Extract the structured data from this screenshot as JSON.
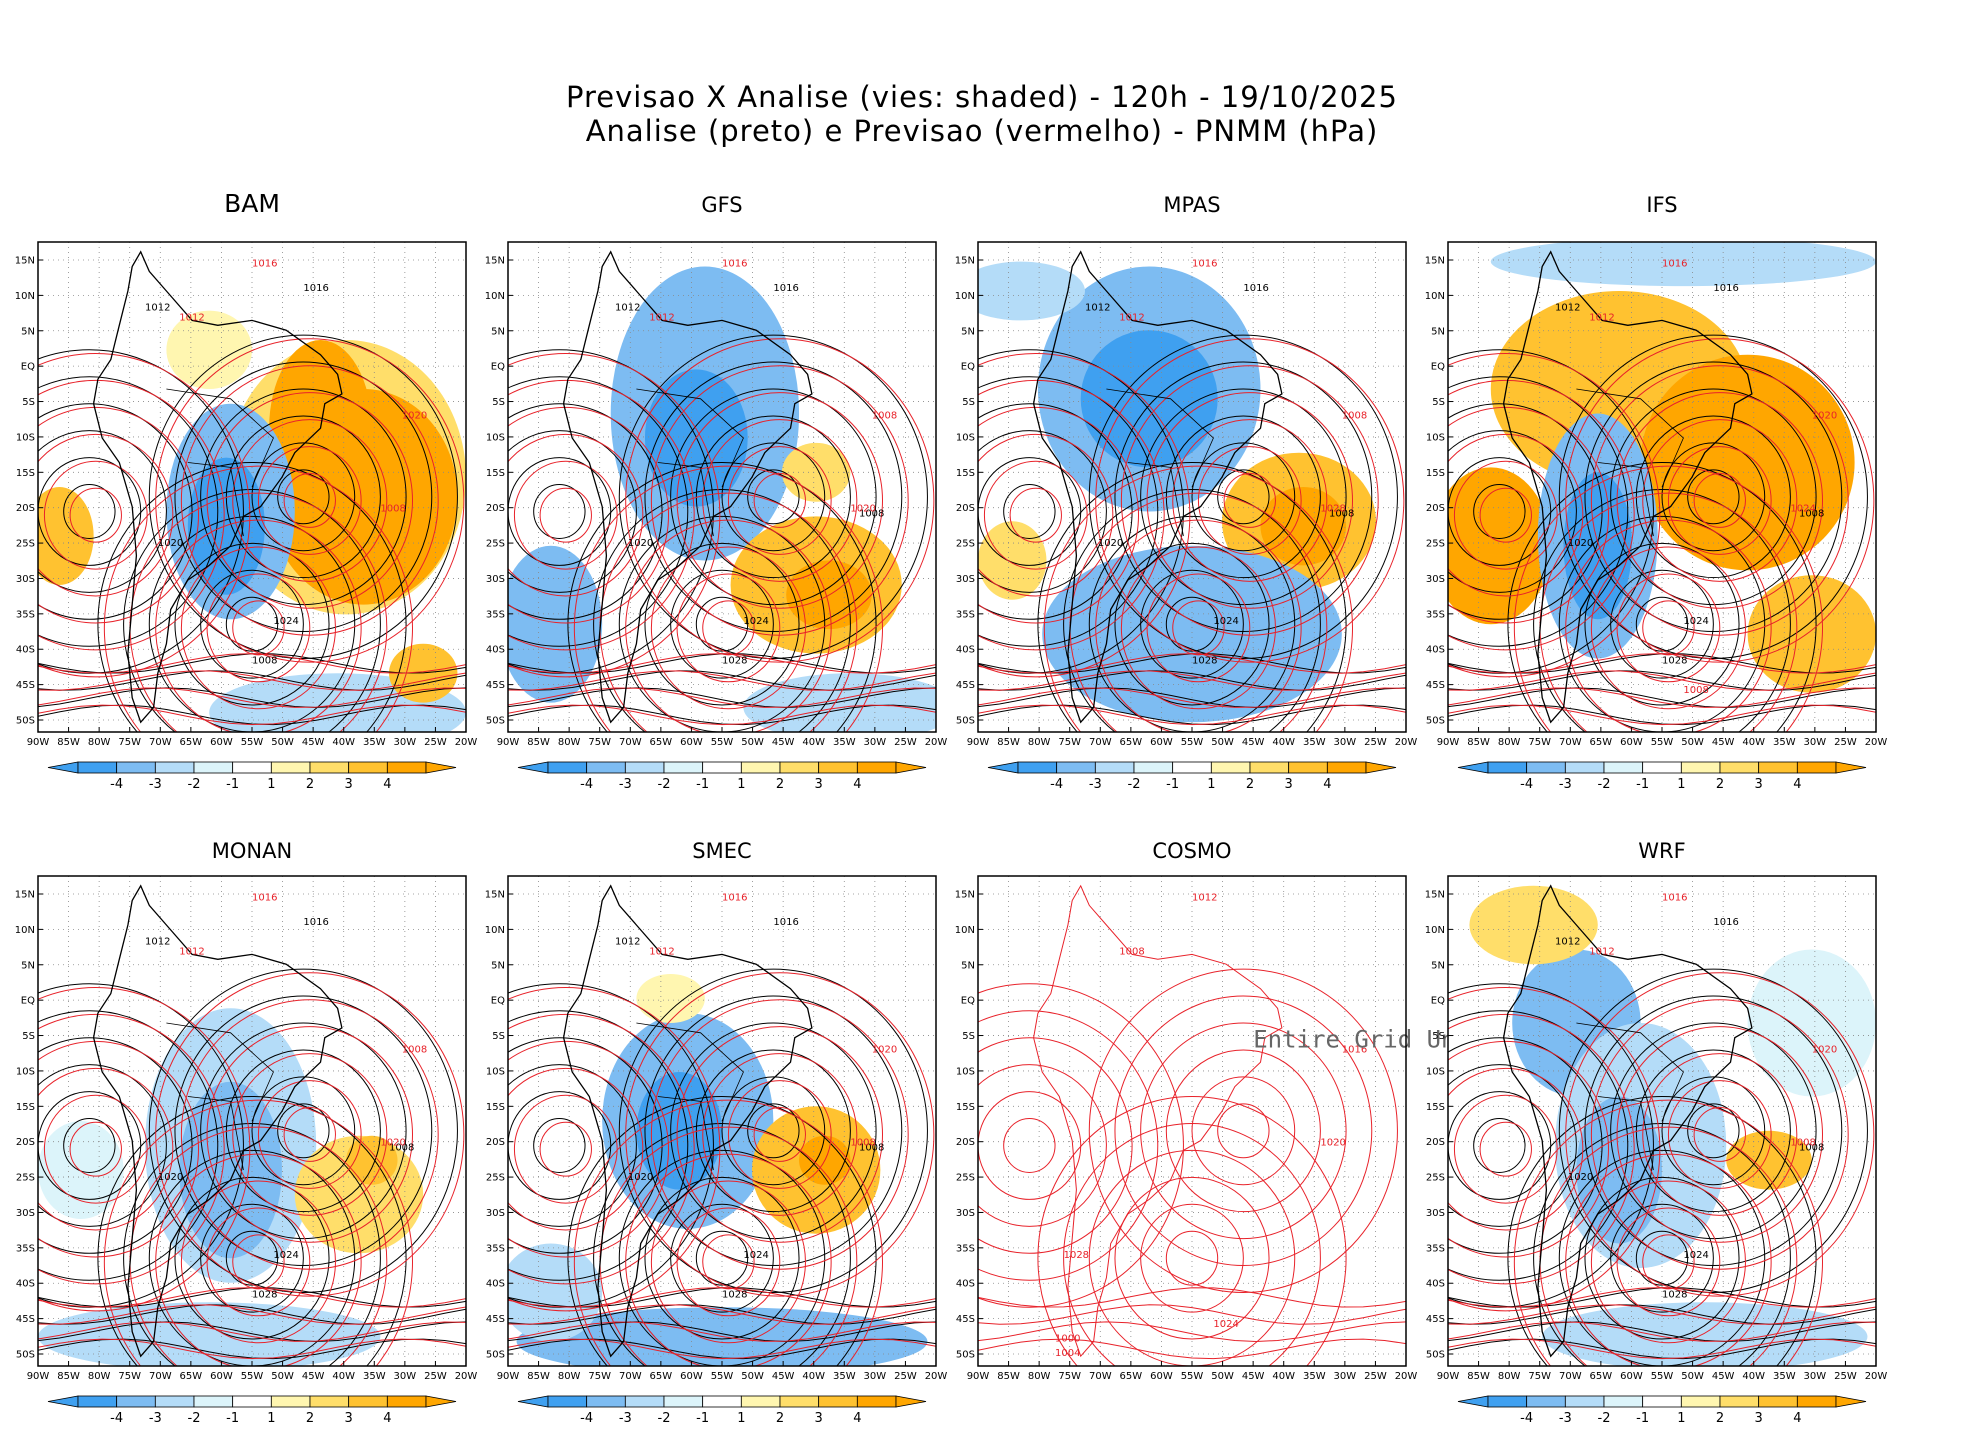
{
  "header": {
    "title_line1": "Previsao X Analise (vies: shaded) - 120h - 19/10/2025",
    "title_line2": "Analise (preto) e Previsao (vermelho) - PNMM (hPa)"
  },
  "colors": {
    "neg4": "#3fa0f0",
    "neg3": "#7dbcf2",
    "neg2": "#b4dcf8",
    "neg1": "#dcf4fa",
    "zero": "#ffffff",
    "pos1": "#fff6b0",
    "pos2": "#ffde6a",
    "pos3": "#ffc230",
    "pos4": "#ffa600",
    "analysis_contour": "#000000",
    "forecast_contour": "#e8222a"
  },
  "axes": {
    "lat_labels": [
      "15N",
      "10N",
      "5N",
      "EQ",
      "5S",
      "10S",
      "15S",
      "20S",
      "25S",
      "30S",
      "35S",
      "40S",
      "45S",
      "50S"
    ],
    "lon_labels": [
      "90W",
      "85W",
      "80W",
      "75W",
      "70W",
      "65W",
      "60W",
      "55W",
      "50W",
      "45W",
      "40W",
      "35W",
      "30W",
      "25W",
      "20W"
    ]
  },
  "colorbar": {
    "labels": [
      "-4",
      "-3",
      "-2",
      "-1",
      "1",
      "2",
      "3",
      "4"
    ]
  },
  "panels": [
    {
      "name": "BAM",
      "mode": "bias",
      "labels_black": [
        "1016",
        "1012",
        "1020",
        "1024",
        "1008"
      ],
      "labels_red": [
        "1016",
        "1012",
        "1020",
        "1008"
      ]
    },
    {
      "name": "GFS",
      "mode": "bias",
      "labels_black": [
        "1016",
        "1012",
        "1020",
        "1024",
        "1028",
        "1008"
      ],
      "labels_red": [
        "1016",
        "1012",
        "1008",
        "1020"
      ]
    },
    {
      "name": "MPAS",
      "mode": "bias",
      "labels_black": [
        "1016",
        "1012",
        "1020",
        "1024",
        "1028",
        "1008"
      ],
      "labels_red": [
        "1016",
        "1012",
        "1008",
        "1028"
      ]
    },
    {
      "name": "IFS",
      "mode": "bias",
      "labels_black": [
        "1016",
        "1012",
        "1020",
        "1024",
        "1028",
        "1008"
      ],
      "labels_red": [
        "1016",
        "1012",
        "1020",
        "1024",
        "1008"
      ]
    },
    {
      "name": "MONAN",
      "mode": "bias",
      "labels_black": [
        "1016",
        "1012",
        "1020",
        "1024",
        "1028",
        "1008"
      ],
      "labels_red": [
        "1016",
        "1012",
        "1008",
        "1020"
      ]
    },
    {
      "name": "SMEC",
      "mode": "bias",
      "labels_black": [
        "1016",
        "1012",
        "1020",
        "1024",
        "1028",
        "1008"
      ],
      "labels_red": [
        "1016",
        "1012",
        "1020",
        "1008"
      ]
    },
    {
      "name": "COSMO",
      "mode": "undef",
      "undef_text": "Entire Grid Undef",
      "labels_black": [],
      "labels_red": [
        "1012",
        "1008",
        "1016",
        "1020",
        "1024",
        "1028",
        "1004",
        "1000"
      ]
    },
    {
      "name": "WRF",
      "mode": "bias",
      "labels_black": [
        "1016",
        "1012",
        "1020",
        "1024",
        "1028",
        "1008"
      ],
      "labels_red": [
        "1016",
        "1012",
        "1020",
        "1008"
      ]
    }
  ]
}
